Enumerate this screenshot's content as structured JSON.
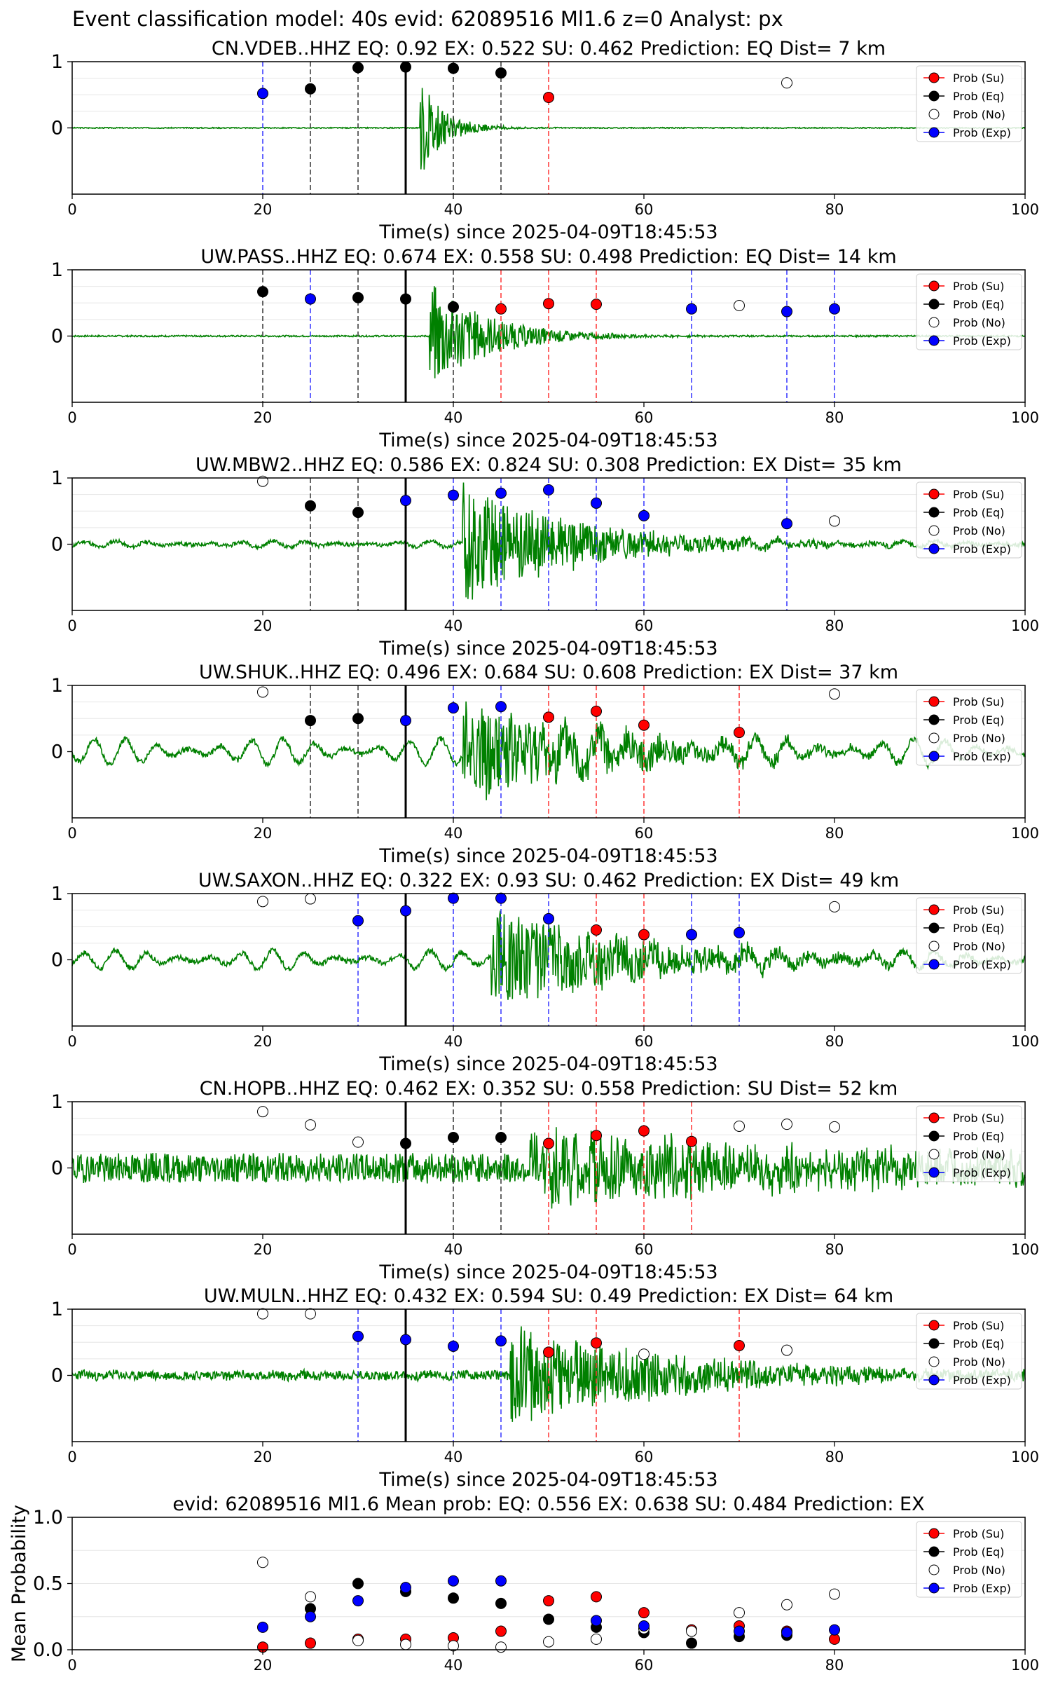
{
  "figure_title": "Event classification model: 40s evid: 62089516 Ml1.6 z=0 Analyst: px",
  "legend_labels": [
    "Prob (Su)",
    "Prob (Eq)",
    "Prob (No)",
    "Prob (Exp)"
  ],
  "colors": {
    "su": "#ff0000",
    "eq": "#000000",
    "no": "#ffffff",
    "exp": "#0000ff",
    "waveform": "#008000"
  },
  "chart_data": [
    {
      "type": "scatter",
      "title": "CN.VDEB..HHZ   EQ: 0.92  EX: 0.522  SU: 0.462   Prediction: EQ    Dist= 7 km",
      "xlabel": "Time(s) since 2025-04-09T18:45:53",
      "xlim": [
        0,
        100
      ],
      "ylim": [
        -1,
        1
      ],
      "x_ticks": [
        "0",
        "20",
        "40",
        "60",
        "80",
        "100"
      ],
      "y_ticks": [
        "1",
        "0"
      ],
      "arrival_line": 35,
      "waveform": {
        "color": "#008000",
        "onset": 36.5,
        "amp": 0.75,
        "noise": 0.008,
        "osc_amp": 0,
        "decay": 2.5,
        "seed": 3
      },
      "points": [
        {
          "x": 20,
          "y": 0.52,
          "class": "exp"
        },
        {
          "x": 25,
          "y": 0.59,
          "class": "eq"
        },
        {
          "x": 30,
          "y": 0.91,
          "class": "eq"
        },
        {
          "x": 35,
          "y": 0.92,
          "class": "eq"
        },
        {
          "x": 40,
          "y": 0.9,
          "class": "eq"
        },
        {
          "x": 45,
          "y": 0.83,
          "class": "eq"
        },
        {
          "x": 50,
          "y": 0.46,
          "class": "su"
        },
        {
          "x": 75,
          "y": 0.68,
          "class": "no"
        }
      ]
    },
    {
      "type": "scatter",
      "title": "UW.PASS..HHZ   EQ: 0.674  EX: 0.558  SU: 0.498   Prediction: EQ    Dist= 14 km",
      "xlabel": "Time(s) since 2025-04-09T18:45:53",
      "xlim": [
        0,
        100
      ],
      "ylim": [
        -1,
        1
      ],
      "x_ticks": [
        "0",
        "20",
        "40",
        "60",
        "80",
        "100"
      ],
      "y_ticks": [
        "1",
        "0"
      ],
      "arrival_line": 35,
      "waveform": {
        "color": "#008000",
        "onset": 37.5,
        "amp": 0.85,
        "noise": 0.012,
        "osc_amp": 0,
        "decay": 6,
        "seed": 7
      },
      "points": [
        {
          "x": 20,
          "y": 0.67,
          "class": "eq"
        },
        {
          "x": 25,
          "y": 0.56,
          "class": "exp"
        },
        {
          "x": 30,
          "y": 0.58,
          "class": "eq"
        },
        {
          "x": 35,
          "y": 0.56,
          "class": "eq"
        },
        {
          "x": 40,
          "y": 0.44,
          "class": "eq"
        },
        {
          "x": 45,
          "y": 0.41,
          "class": "su"
        },
        {
          "x": 50,
          "y": 0.49,
          "class": "su"
        },
        {
          "x": 55,
          "y": 0.48,
          "class": "su"
        },
        {
          "x": 65,
          "y": 0.41,
          "class": "exp"
        },
        {
          "x": 70,
          "y": 0.46,
          "class": "no"
        },
        {
          "x": 75,
          "y": 0.37,
          "class": "exp"
        },
        {
          "x": 80,
          "y": 0.41,
          "class": "exp"
        }
      ]
    },
    {
      "type": "scatter",
      "title": "UW.MBW2..HHZ   EQ: 0.586  EX: 0.824  SU: 0.308   Prediction: EX    Dist= 35 km",
      "xlabel": "Time(s) since 2025-04-09T18:45:53",
      "xlim": [
        0,
        100
      ],
      "ylim": [
        -1,
        1
      ],
      "x_ticks": [
        "0",
        "20",
        "40",
        "60",
        "80",
        "100"
      ],
      "y_ticks": [
        "1",
        "0"
      ],
      "arrival_line": 35,
      "waveform": {
        "color": "#008000",
        "onset": 41,
        "amp": 0.9,
        "noise": 0.03,
        "osc_amp": 0.05,
        "decay": 12,
        "seed": 11
      },
      "points": [
        {
          "x": 20,
          "y": 0.95,
          "class": "no"
        },
        {
          "x": 25,
          "y": 0.58,
          "class": "eq"
        },
        {
          "x": 30,
          "y": 0.48,
          "class": "eq"
        },
        {
          "x": 35,
          "y": 0.66,
          "class": "exp"
        },
        {
          "x": 40,
          "y": 0.74,
          "class": "exp"
        },
        {
          "x": 45,
          "y": 0.77,
          "class": "exp"
        },
        {
          "x": 50,
          "y": 0.82,
          "class": "exp"
        },
        {
          "x": 55,
          "y": 0.62,
          "class": "exp"
        },
        {
          "x": 60,
          "y": 0.43,
          "class": "exp"
        },
        {
          "x": 75,
          "y": 0.31,
          "class": "exp"
        },
        {
          "x": 80,
          "y": 0.35,
          "class": "no"
        }
      ]
    },
    {
      "type": "scatter",
      "title": "UW.SHUK..HHZ   EQ: 0.496  EX: 0.684  SU: 0.608   Prediction: EX    Dist= 37 km",
      "xlabel": "Time(s) since 2025-04-09T18:45:53",
      "xlim": [
        0,
        100
      ],
      "ylim": [
        -1,
        1
      ],
      "x_ticks": [
        "0",
        "20",
        "40",
        "60",
        "80",
        "100"
      ],
      "y_ticks": [
        "1",
        "0"
      ],
      "arrival_line": 35,
      "waveform": {
        "color": "#008000",
        "onset": 41,
        "amp": 0.85,
        "noise": 0.04,
        "osc_amp": 0.2,
        "decay": 14,
        "seed": 13
      },
      "points": [
        {
          "x": 20,
          "y": 0.9,
          "class": "no"
        },
        {
          "x": 25,
          "y": 0.47,
          "class": "eq"
        },
        {
          "x": 30,
          "y": 0.5,
          "class": "eq"
        },
        {
          "x": 35,
          "y": 0.47,
          "class": "exp"
        },
        {
          "x": 40,
          "y": 0.66,
          "class": "exp"
        },
        {
          "x": 45,
          "y": 0.68,
          "class": "exp"
        },
        {
          "x": 50,
          "y": 0.52,
          "class": "su"
        },
        {
          "x": 55,
          "y": 0.61,
          "class": "su"
        },
        {
          "x": 60,
          "y": 0.4,
          "class": "su"
        },
        {
          "x": 70,
          "y": 0.29,
          "class": "su"
        },
        {
          "x": 80,
          "y": 0.87,
          "class": "no"
        }
      ]
    },
    {
      "type": "scatter",
      "title": "UW.SAXON..HHZ   EQ: 0.322  EX: 0.93  SU: 0.462   Prediction: EX    Dist= 49 km",
      "xlabel": "Time(s) since 2025-04-09T18:45:53",
      "xlim": [
        0,
        100
      ],
      "ylim": [
        -1,
        1
      ],
      "x_ticks": [
        "0",
        "20",
        "40",
        "60",
        "80",
        "100"
      ],
      "y_ticks": [
        "1",
        "0"
      ],
      "arrival_line": 35,
      "waveform": {
        "color": "#008000",
        "onset": 44,
        "amp": 0.8,
        "noise": 0.04,
        "osc_amp": 0.14,
        "decay": 15,
        "seed": 17
      },
      "points": [
        {
          "x": 20,
          "y": 0.88,
          "class": "no"
        },
        {
          "x": 25,
          "y": 0.92,
          "class": "no"
        },
        {
          "x": 30,
          "y": 0.59,
          "class": "exp"
        },
        {
          "x": 35,
          "y": 0.74,
          "class": "exp"
        },
        {
          "x": 40,
          "y": 0.93,
          "class": "exp"
        },
        {
          "x": 45,
          "y": 0.93,
          "class": "exp"
        },
        {
          "x": 50,
          "y": 0.62,
          "class": "exp"
        },
        {
          "x": 55,
          "y": 0.45,
          "class": "su"
        },
        {
          "x": 60,
          "y": 0.38,
          "class": "su"
        },
        {
          "x": 65,
          "y": 0.38,
          "class": "exp"
        },
        {
          "x": 70,
          "y": 0.41,
          "class": "exp"
        },
        {
          "x": 80,
          "y": 0.8,
          "class": "no"
        }
      ]
    },
    {
      "type": "scatter",
      "title": "CN.HOPB..HHZ   EQ: 0.462  EX: 0.352  SU: 0.558   Prediction: SU    Dist= 52 km",
      "xlabel": "Time(s) since 2025-04-09T18:45:53",
      "xlim": [
        0,
        100
      ],
      "ylim": [
        -1,
        1
      ],
      "x_ticks": [
        "0",
        "20",
        "40",
        "60",
        "80",
        "100"
      ],
      "y_ticks": [
        "1",
        "0"
      ],
      "arrival_line": 35,
      "waveform": {
        "color": "#008000",
        "onset": 48,
        "amp": 0.55,
        "noise": 0.22,
        "osc_amp": 0.02,
        "decay": 30,
        "seed": 19
      },
      "points": [
        {
          "x": 20,
          "y": 0.85,
          "class": "no"
        },
        {
          "x": 25,
          "y": 0.65,
          "class": "no"
        },
        {
          "x": 30,
          "y": 0.39,
          "class": "no"
        },
        {
          "x": 35,
          "y": 0.37,
          "class": "eq"
        },
        {
          "x": 40,
          "y": 0.46,
          "class": "eq"
        },
        {
          "x": 45,
          "y": 0.46,
          "class": "eq"
        },
        {
          "x": 50,
          "y": 0.37,
          "class": "su"
        },
        {
          "x": 55,
          "y": 0.49,
          "class": "su"
        },
        {
          "x": 60,
          "y": 0.56,
          "class": "su"
        },
        {
          "x": 65,
          "y": 0.4,
          "class": "su"
        },
        {
          "x": 70,
          "y": 0.63,
          "class": "no"
        },
        {
          "x": 75,
          "y": 0.66,
          "class": "no"
        },
        {
          "x": 80,
          "y": 0.62,
          "class": "no"
        }
      ]
    },
    {
      "type": "scatter",
      "title": "UW.MULN..HHZ   EQ: 0.432  EX: 0.594  SU: 0.49   Prediction: EX    Dist= 64 km",
      "xlabel": "Time(s) since 2025-04-09T18:45:53",
      "xlim": [
        0,
        100
      ],
      "ylim": [
        -1,
        1
      ],
      "x_ticks": [
        "0",
        "20",
        "40",
        "60",
        "80",
        "100"
      ],
      "y_ticks": [
        "1",
        "0"
      ],
      "arrival_line": 35,
      "waveform": {
        "color": "#008000",
        "onset": 46,
        "amp": 0.75,
        "noise": 0.07,
        "osc_amp": 0.02,
        "decay": 18,
        "seed": 23
      },
      "points": [
        {
          "x": 20,
          "y": 0.93,
          "class": "no"
        },
        {
          "x": 25,
          "y": 0.93,
          "class": "no"
        },
        {
          "x": 30,
          "y": 0.59,
          "class": "exp"
        },
        {
          "x": 35,
          "y": 0.54,
          "class": "exp"
        },
        {
          "x": 40,
          "y": 0.44,
          "class": "exp"
        },
        {
          "x": 45,
          "y": 0.52,
          "class": "exp"
        },
        {
          "x": 50,
          "y": 0.35,
          "class": "su"
        },
        {
          "x": 55,
          "y": 0.49,
          "class": "su"
        },
        {
          "x": 60,
          "y": 0.32,
          "class": "no"
        },
        {
          "x": 70,
          "y": 0.45,
          "class": "su"
        },
        {
          "x": 75,
          "y": 0.38,
          "class": "no"
        }
      ]
    },
    {
      "type": "scatter",
      "title": "evid: 62089516  Ml1.6   Mean prob:   EQ: 0.556  EX: 0.638  SU: 0.484   Prediction: EX",
      "xlabel": "",
      "ylabel": "Mean Probability",
      "xlim": [
        0,
        100
      ],
      "ylim": [
        0,
        1
      ],
      "x_ticks": [
        "0",
        "20",
        "40",
        "60",
        "80",
        "100"
      ],
      "y_ticks": [
        "1.0",
        "0.5",
        "0.0"
      ],
      "series": [
        {
          "class": "su",
          "x": [
            20,
            25,
            30,
            35,
            40,
            45,
            50,
            55,
            60,
            65,
            70,
            75,
            80
          ],
          "y": [
            0.02,
            0.05,
            0.08,
            0.08,
            0.09,
            0.14,
            0.37,
            0.4,
            0.28,
            0.15,
            0.18,
            0.14,
            0.08
          ]
        },
        {
          "class": "eq",
          "x": [
            25,
            30,
            35,
            40,
            45,
            50,
            55,
            60,
            65,
            70,
            75
          ],
          "y": [
            0.31,
            0.5,
            0.44,
            0.39,
            0.35,
            0.23,
            0.17,
            0.13,
            0.05,
            0.1,
            0.11
          ]
        },
        {
          "class": "no",
          "x": [
            20,
            25,
            30,
            35,
            40,
            45,
            50,
            55,
            60,
            65,
            70,
            75,
            80
          ],
          "y": [
            0.66,
            0.4,
            0.07,
            0.04,
            0.03,
            0.02,
            0.06,
            0.08,
            0.16,
            0.14,
            0.28,
            0.34,
            0.42
          ]
        },
        {
          "class": "exp",
          "x": [
            20,
            25,
            30,
            35,
            40,
            45,
            55,
            60,
            70,
            75,
            80
          ],
          "y": [
            0.17,
            0.25,
            0.37,
            0.47,
            0.52,
            0.52,
            0.22,
            0.18,
            0.14,
            0.13,
            0.15
          ]
        }
      ]
    }
  ]
}
